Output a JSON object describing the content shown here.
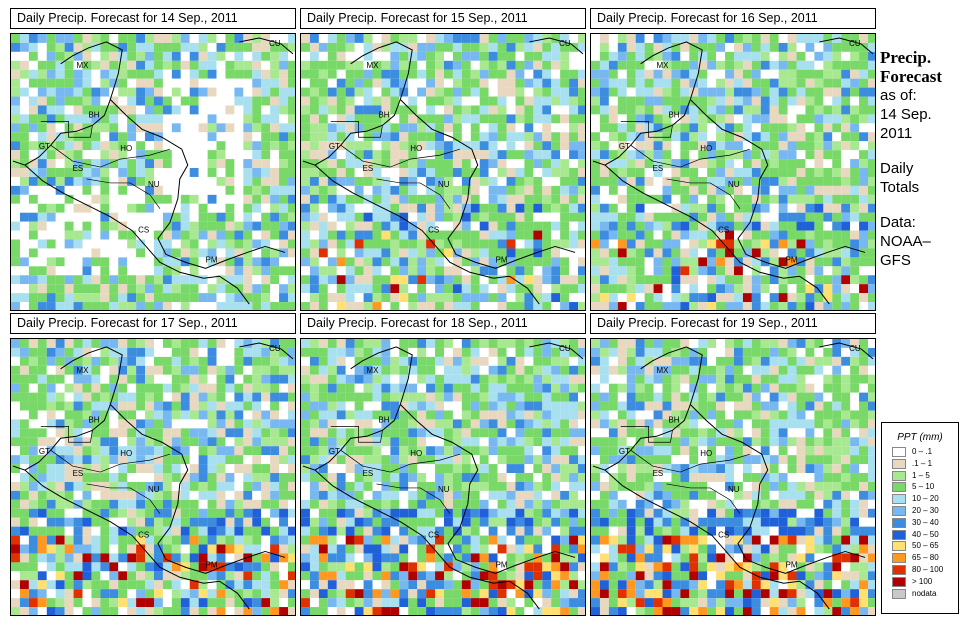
{
  "panels": [
    {
      "title": "Daily Precip. Forecast for  14 Sep., 2011",
      "seed": 14,
      "intensity": 0.0
    },
    {
      "title": "Daily Precip. Forecast for  15 Sep., 2011",
      "seed": 15,
      "intensity": 0.2
    },
    {
      "title": "Daily Precip. Forecast for  16 Sep., 2011",
      "seed": 16,
      "intensity": 0.35
    },
    {
      "title": "Daily Precip. Forecast for  17 Sep., 2011",
      "seed": 17,
      "intensity": 0.55
    },
    {
      "title": "Daily Precip. Forecast for  18 Sep., 2011",
      "seed": 18,
      "intensity": 0.75
    },
    {
      "title": "Daily Precip. Forecast for  19 Sep., 2011",
      "seed": 19,
      "intensity": 0.9
    }
  ],
  "map_labels": [
    "MX",
    "BH",
    "GT",
    "HO",
    "ES",
    "NU",
    "CS",
    "PM",
    "CU"
  ],
  "side": {
    "heading_line1": "Precip.",
    "heading_line2": "Forecast",
    "as_of": "as of:",
    "date_line1": "14 Sep.",
    "date_line2": "2011",
    "daily_line1": "Daily",
    "daily_line2": "Totals",
    "data_line1": "Data:",
    "data_line2": "NOAA–",
    "data_line3": "GFS"
  },
  "legend": {
    "title": "PPT (mm)",
    "items": [
      {
        "label": "0 – .1",
        "color": "#ffffff"
      },
      {
        "label": ".1 – 1",
        "color": "#e8d8c0"
      },
      {
        "label": "1 – 5",
        "color": "#a8e890"
      },
      {
        "label": "5 – 10",
        "color": "#78d868"
      },
      {
        "label": "10 – 20",
        "color": "#a8e0f0"
      },
      {
        "label": "20 – 30",
        "color": "#78b8f0"
      },
      {
        "label": "30 – 40",
        "color": "#3c8ce0"
      },
      {
        "label": "40 – 50",
        "color": "#2060d8"
      },
      {
        "label": "50 – 65",
        "color": "#ffe070"
      },
      {
        "label": "65 – 80",
        "color": "#ff9820"
      },
      {
        "label": "80 – 100",
        "color": "#e03000"
      },
      {
        "label": "> 100",
        "color": "#b00000"
      },
      {
        "label": "nodata",
        "color": "#c8c8c8"
      }
    ]
  }
}
